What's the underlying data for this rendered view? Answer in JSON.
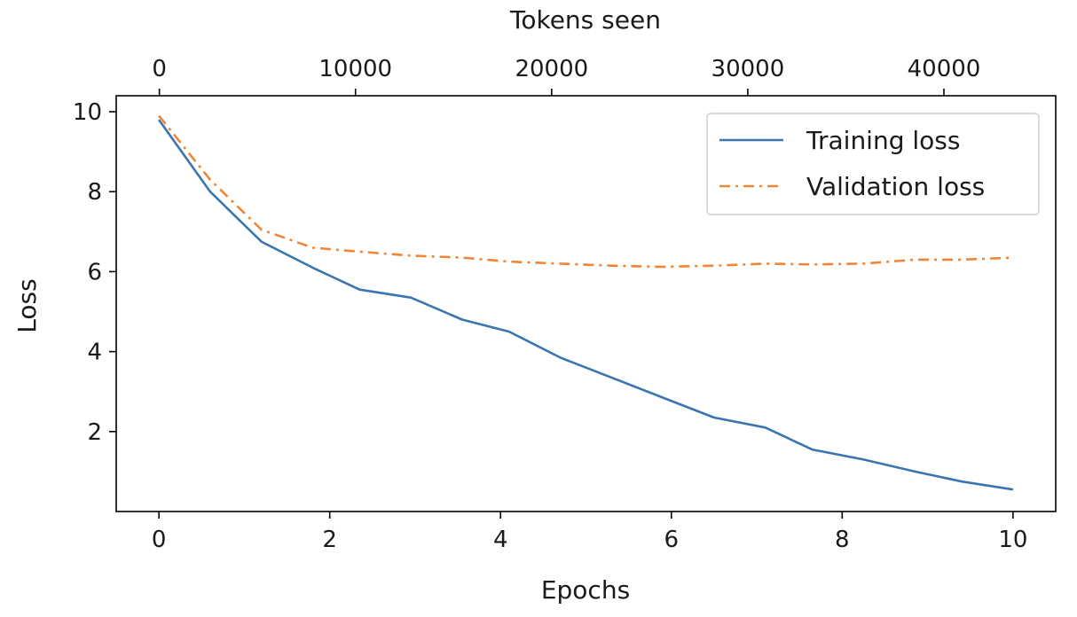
{
  "chart_data": {
    "type": "line",
    "xlabel": "Epochs",
    "ylabel": "Loss",
    "top_xlabel": "Tokens seen",
    "xlim": [
      -0.5,
      10.5
    ],
    "ylim": [
      0,
      10.4
    ],
    "top_xlim": [
      -2200,
      45700
    ],
    "xticks": [
      0,
      2,
      4,
      6,
      8,
      10
    ],
    "yticks": [
      2,
      4,
      6,
      8,
      10
    ],
    "top_xticks": [
      0,
      10000,
      20000,
      30000,
      40000
    ],
    "grid": false,
    "legend": "upper right",
    "series": [
      {
        "name": "Training loss",
        "color": "#3b75af",
        "style": "solid",
        "x": [
          0,
          0.6,
          1.2,
          1.8,
          2.35,
          2.95,
          3.55,
          4.1,
          4.7,
          5.3,
          5.9,
          6.5,
          7.1,
          7.65,
          8.25,
          8.85,
          9.4,
          10
        ],
        "values": [
          9.8,
          8.0,
          6.75,
          6.1,
          5.55,
          5.35,
          4.8,
          4.5,
          3.85,
          3.35,
          2.85,
          2.35,
          2.1,
          1.55,
          1.3,
          1.0,
          0.75,
          0.55
        ]
      },
      {
        "name": "Validation loss",
        "color": "#ef8636",
        "style": "dashdot",
        "x": [
          0,
          0.6,
          1.2,
          1.8,
          2.35,
          2.95,
          3.55,
          4.1,
          4.7,
          5.3,
          5.9,
          6.5,
          7.1,
          7.65,
          8.25,
          8.85,
          9.4,
          10
        ],
        "values": [
          9.9,
          8.3,
          7.05,
          6.6,
          6.5,
          6.4,
          6.35,
          6.25,
          6.2,
          6.15,
          6.12,
          6.15,
          6.2,
          6.18,
          6.2,
          6.3,
          6.3,
          6.35
        ]
      }
    ]
  }
}
